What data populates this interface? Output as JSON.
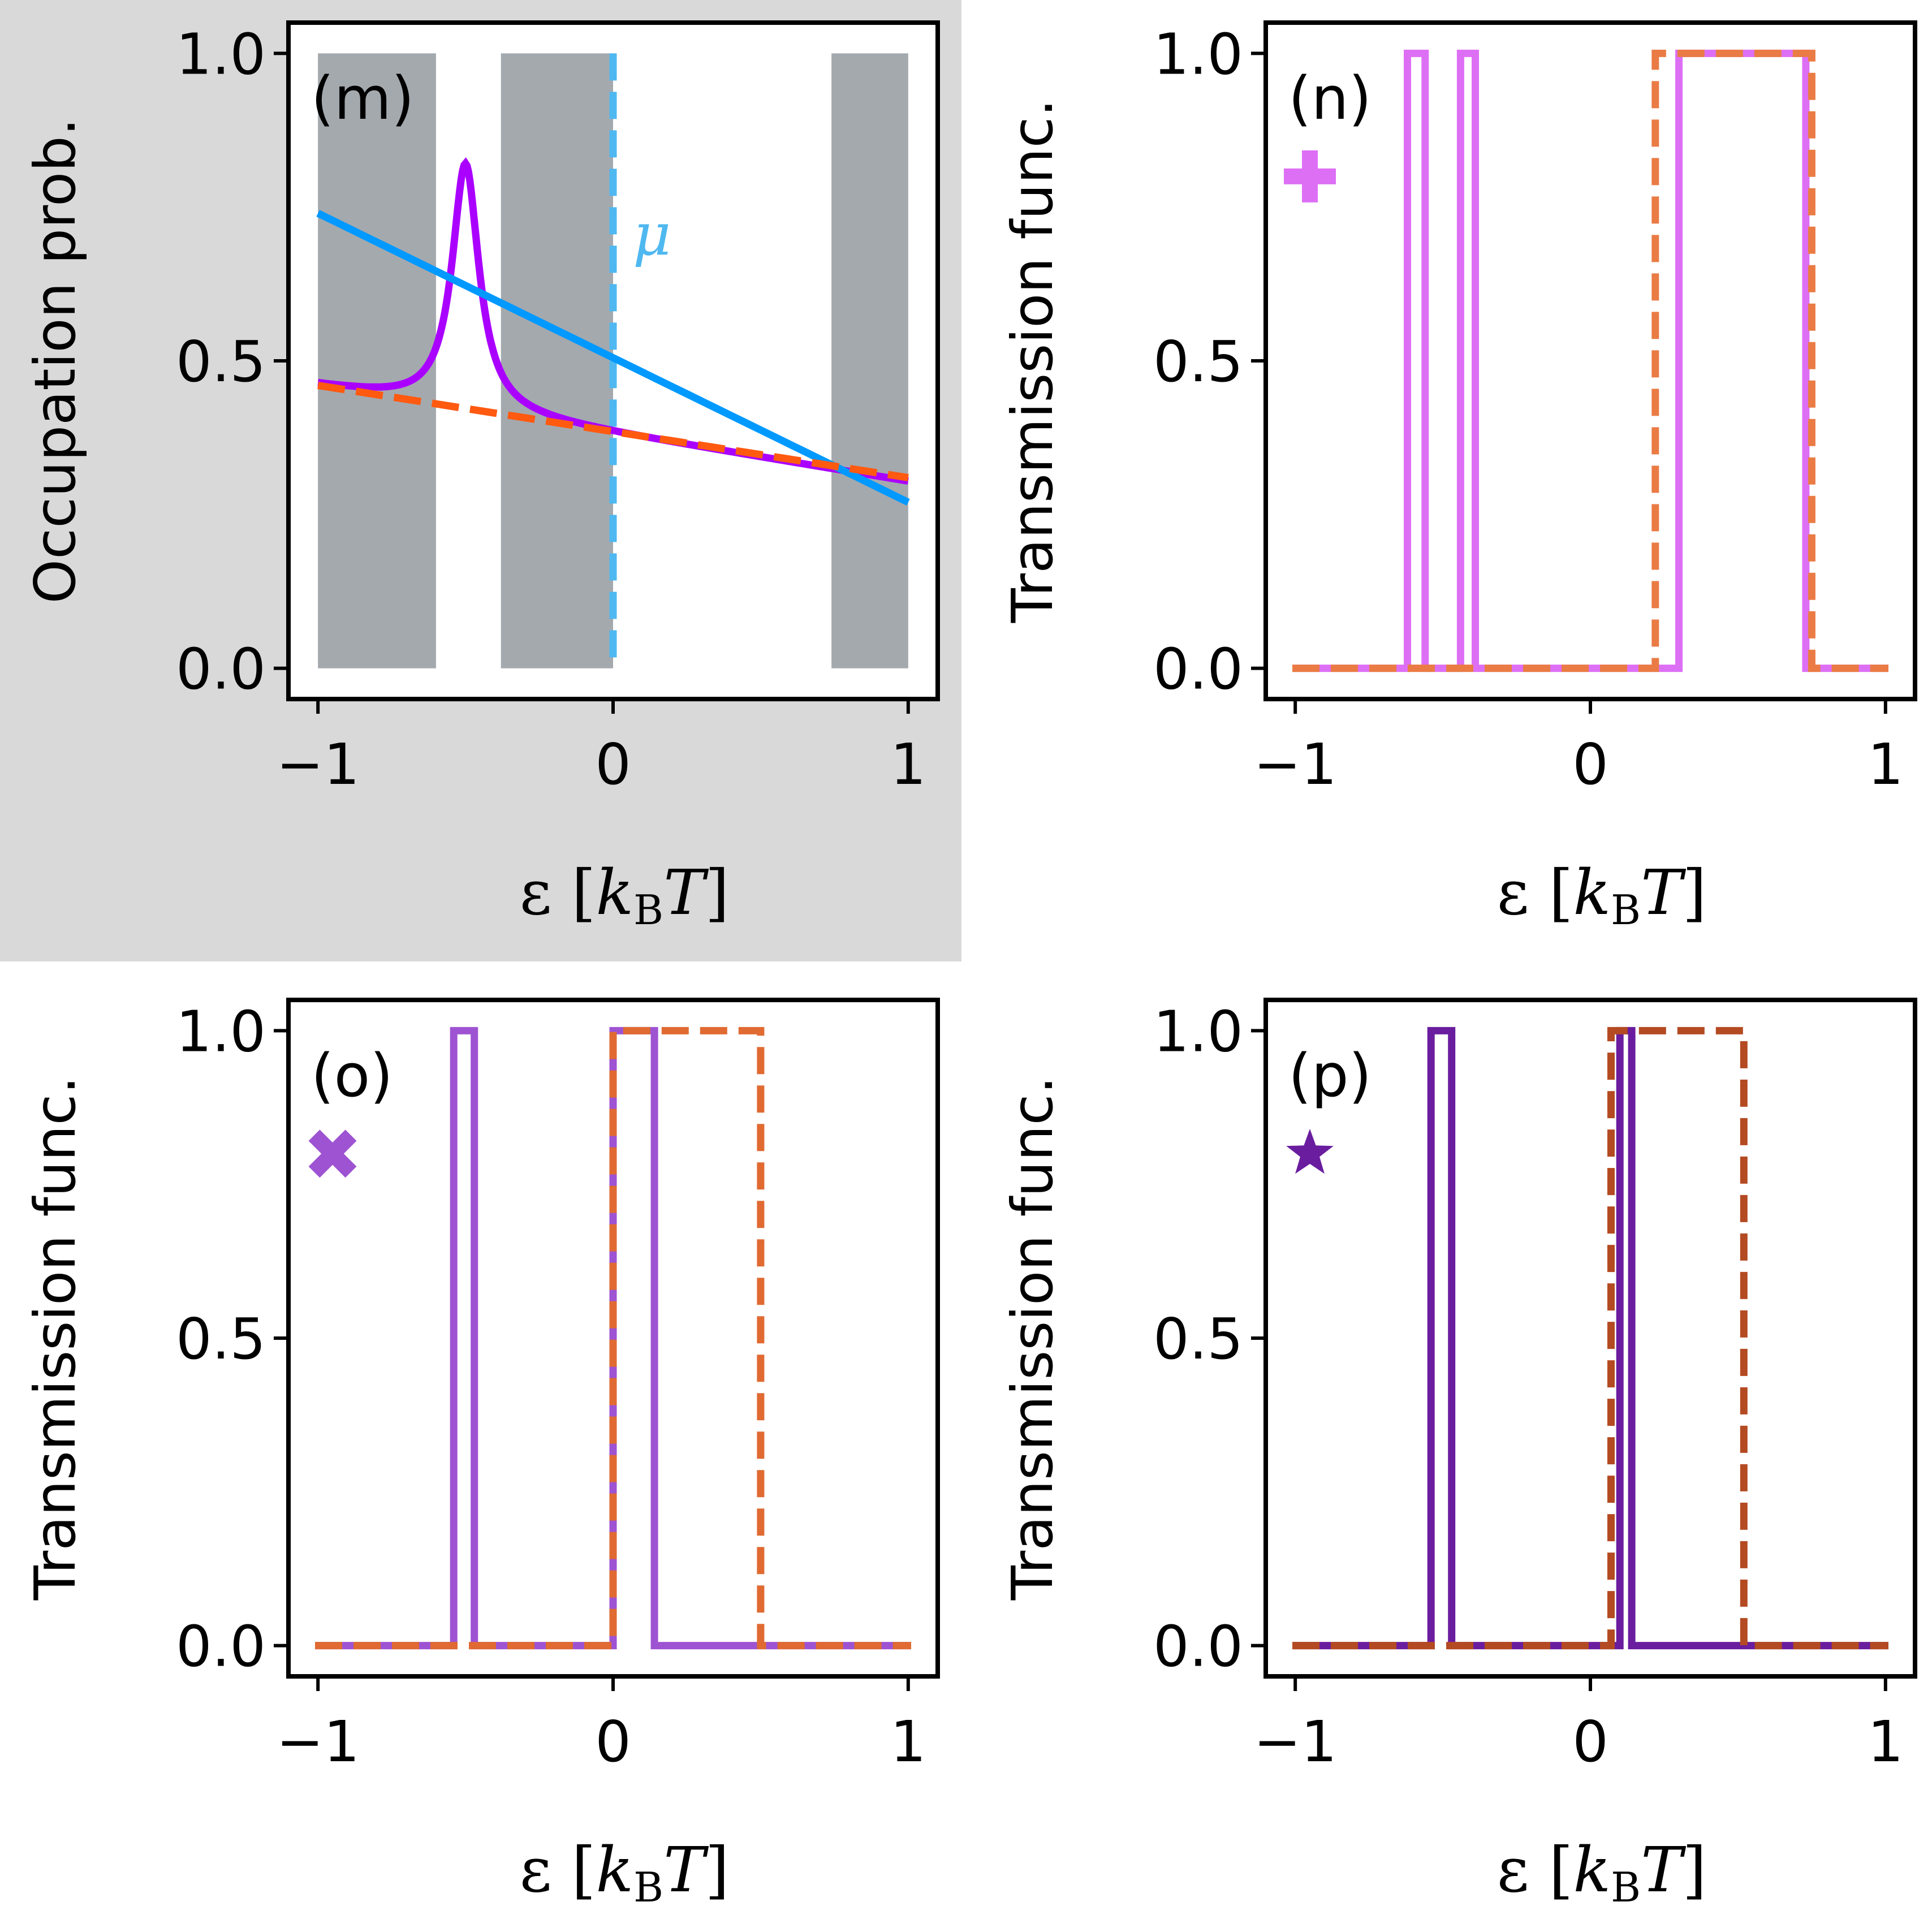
{
  "chart_data": [
    {
      "type": "line",
      "panel_label": "(m)",
      "highlighted": true,
      "ylabel": "Occupation prob.",
      "xlabel": {
        "symbol": "ε",
        "unit_k": "k",
        "unit_sub": "B",
        "unit_T": "T"
      },
      "xlim": [
        -1.1,
        1.1
      ],
      "ylim": [
        -0.05,
        1.05
      ],
      "xticks": [
        -1,
        0,
        1
      ],
      "xtick_labels": [
        "−1",
        "0",
        "1"
      ],
      "yticks": [
        0.0,
        0.5,
        1.0
      ],
      "ytick_labels": [
        "0.0",
        "0.5",
        "1.0"
      ],
      "shaded_bands": [
        [
          -1.0,
          -0.6
        ],
        [
          -0.38,
          0.0
        ],
        [
          0.74,
          1.0
        ]
      ],
      "vline": {
        "x": 0.0,
        "label": "μ",
        "color": "#4fb8f0"
      },
      "series": [
        {
          "kind": "lorentz",
          "color": "#aa00ff",
          "dash": "none",
          "x0": -0.5,
          "gamma": 0.055,
          "amp": 0.4,
          "base_a": 0.382,
          "base_b": -0.078
        },
        {
          "kind": "linear",
          "color": "#0099ff",
          "dash": "none",
          "a": 0.505,
          "b": -0.235
        },
        {
          "kind": "linear",
          "color": "#ff5a10",
          "dash": "dashed",
          "a": 0.385,
          "b": -0.075
        }
      ]
    },
    {
      "type": "line",
      "panel_label": "(n)",
      "marker": "plus",
      "marker_color": "#dd6ff5",
      "ylabel": "Transmission func.",
      "xlabel": {
        "symbol": "ε",
        "unit_k": "k",
        "unit_sub": "B",
        "unit_T": "T"
      },
      "xlim": [
        -1.1,
        1.1
      ],
      "ylim": [
        -0.05,
        1.05
      ],
      "xticks": [
        -1,
        0,
        1
      ],
      "xtick_labels": [
        "−1",
        "0",
        "1"
      ],
      "yticks": [
        0.0,
        0.5,
        1.0
      ],
      "ytick_labels": [
        "0.0",
        "0.5",
        "1.0"
      ],
      "series": [
        {
          "kind": "step",
          "color": "#dd6ff5",
          "dash": "none",
          "intervals": [
            [
              -0.62,
              -0.56
            ],
            [
              -0.44,
              -0.39
            ],
            [
              0.3,
              0.73
            ]
          ]
        },
        {
          "kind": "step",
          "color": "#ea7b45",
          "dash": "dashed",
          "intervals": [
            [
              0.22,
              0.75
            ]
          ]
        }
      ]
    },
    {
      "type": "line",
      "panel_label": "(o)",
      "marker": "x",
      "marker_color": "#9e53d2",
      "ylabel": "Transmission func.",
      "xlabel": {
        "symbol": "ε",
        "unit_k": "k",
        "unit_sub": "B",
        "unit_T": "T"
      },
      "xlim": [
        -1.1,
        1.1
      ],
      "ylim": [
        -0.05,
        1.05
      ],
      "xticks": [
        -1,
        0,
        1
      ],
      "xtick_labels": [
        "−1",
        "0",
        "1"
      ],
      "yticks": [
        0.0,
        0.5,
        1.0
      ],
      "ytick_labels": [
        "0.0",
        "0.5",
        "1.0"
      ],
      "series": [
        {
          "kind": "step",
          "color": "#9e53d2",
          "dash": "none",
          "intervals": [
            [
              -0.54,
              -0.47
            ],
            [
              0.0,
              0.14
            ]
          ]
        },
        {
          "kind": "step",
          "color": "#e06a32",
          "dash": "dashed",
          "intervals": [
            [
              0.0,
              0.5
            ]
          ]
        }
      ]
    },
    {
      "type": "line",
      "panel_label": "(p)",
      "marker": "star",
      "marker_color": "#6a1d9e",
      "ylabel": "Transmission func.",
      "xlabel": {
        "symbol": "ε",
        "unit_k": "k",
        "unit_sub": "B",
        "unit_T": "T"
      },
      "xlim": [
        -1.1,
        1.1
      ],
      "ylim": [
        -0.05,
        1.05
      ],
      "xticks": [
        -1,
        0,
        1
      ],
      "xtick_labels": [
        "−1",
        "0",
        "1"
      ],
      "yticks": [
        0.0,
        0.5,
        1.0
      ],
      "ytick_labels": [
        "0.0",
        "0.5",
        "1.0"
      ],
      "series": [
        {
          "kind": "step",
          "color": "#6a1d9e",
          "dash": "none",
          "intervals": [
            [
              -0.54,
              -0.47
            ],
            [
              0.1,
              0.14
            ]
          ]
        },
        {
          "kind": "step",
          "color": "#b44a22",
          "dash": "dashed",
          "intervals": [
            [
              0.07,
              0.52
            ]
          ]
        }
      ]
    }
  ]
}
